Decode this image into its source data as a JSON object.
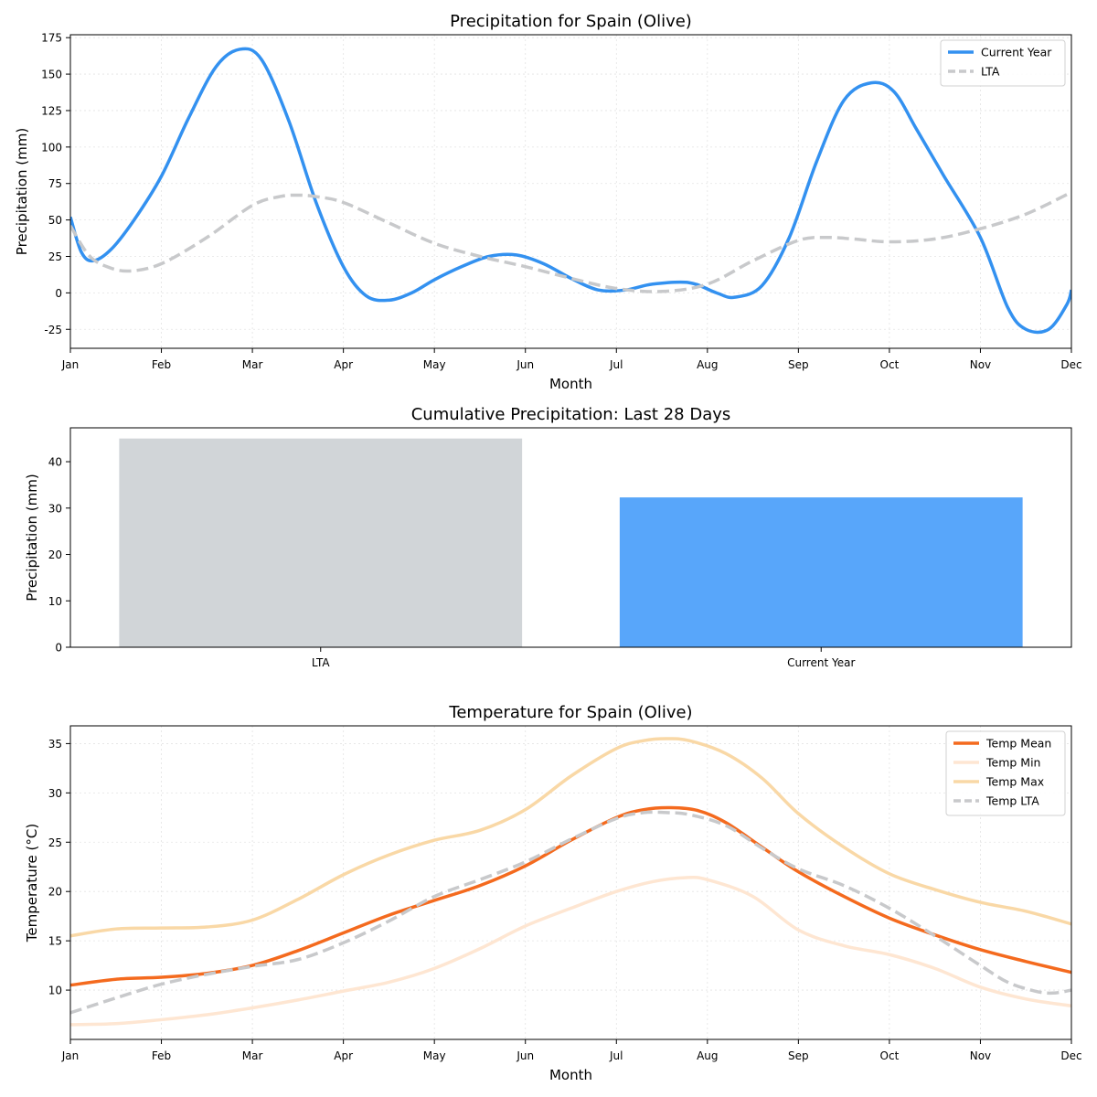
{
  "chart_data": [
    {
      "type": "line",
      "title": "Precipitation for Spain (Olive)",
      "xlabel": "Month",
      "ylabel": "Precipitation (mm)",
      "categories": [
        "Jan",
        "Feb",
        "Mar",
        "Apr",
        "May",
        "Jun",
        "Jul",
        "Aug",
        "Sep",
        "Oct",
        "Nov",
        "Dec"
      ],
      "xlim": [
        0,
        11
      ],
      "ylim": [
        -38,
        177
      ],
      "yticks": [
        -25,
        0,
        25,
        50,
        75,
        100,
        125,
        150,
        175
      ],
      "grid": true,
      "legend": "upper right",
      "series": [
        {
          "name": "Current Year",
          "color": "#3391f0",
          "style": "solid",
          "x": [
            0,
            0.12,
            0.25,
            0.45,
            0.7,
            1.0,
            1.3,
            1.6,
            1.86,
            2.1,
            2.4,
            2.7,
            3.0,
            3.25,
            3.5,
            3.75,
            4.0,
            4.3,
            4.6,
            4.9,
            5.2,
            5.5,
            5.8,
            6.1,
            6.4,
            6.8,
            7.1,
            7.3,
            7.6,
            7.9,
            8.2,
            8.5,
            8.8,
            9.05,
            9.3,
            9.6,
            10.0,
            10.3,
            10.5,
            10.75,
            10.95,
            11.0
          ],
          "y": [
            52,
            28,
            22,
            30,
            50,
            80,
            120,
            155,
            167,
            160,
            118,
            62,
            18,
            -2,
            -5,
            0,
            9,
            18,
            25,
            26,
            20,
            10,
            2,
            2,
            6,
            7,
            0,
            -3,
            5,
            38,
            90,
            132,
            144,
            138,
            112,
            80,
            38,
            -10,
            -25,
            -25,
            -8,
            2
          ]
        },
        {
          "name": "LTA",
          "color": "#c8c9cb",
          "style": "dashed",
          "x": [
            0,
            0.2,
            0.4,
            0.65,
            1.0,
            1.5,
            2.0,
            2.3,
            2.5,
            2.7,
            3.0,
            3.5,
            4.0,
            4.5,
            5.0,
            5.5,
            6.0,
            6.5,
            7.0,
            7.5,
            8.0,
            8.3,
            8.6,
            9.0,
            9.5,
            10.0,
            10.5,
            11.0
          ],
          "y": [
            46,
            26,
            18,
            15,
            20,
            38,
            60,
            66,
            67,
            66,
            62,
            48,
            34,
            25,
            18,
            10,
            3,
            1,
            6,
            22,
            36,
            38,
            37,
            35,
            37,
            44,
            54,
            69
          ]
        }
      ]
    },
    {
      "type": "bar",
      "title": "Cumulative Precipitation: Last 28 Days",
      "xlabel": "",
      "ylabel": "Precipitation (mm)",
      "categories": [
        "LTA",
        "Current Year"
      ],
      "values": [
        45,
        32.3
      ],
      "colors": [
        "#d1d5d8",
        "#58a6fa"
      ],
      "ylim": [
        0,
        47.3
      ],
      "yticks": [
        0,
        10,
        20,
        30,
        40
      ],
      "grid": false
    },
    {
      "type": "line",
      "title": "Temperature for Spain (Olive)",
      "xlabel": "Month",
      "ylabel": "Temperature (°C)",
      "categories": [
        "Jan",
        "Feb",
        "Mar",
        "Apr",
        "May",
        "Jun",
        "Jul",
        "Aug",
        "Sep",
        "Oct",
        "Nov",
        "Dec"
      ],
      "xlim": [
        0,
        11
      ],
      "ylim": [
        5,
        36.8
      ],
      "yticks": [
        10,
        15,
        20,
        25,
        30,
        35
      ],
      "grid": true,
      "legend": "upper right",
      "series": [
        {
          "name": "Temp Mean",
          "color": "#f46a1e",
          "style": "solid",
          "x": [
            0,
            0.5,
            1.0,
            1.5,
            2.0,
            2.5,
            3.0,
            3.5,
            4.0,
            4.5,
            5.0,
            5.5,
            6.0,
            6.3,
            6.6,
            6.9,
            7.2,
            7.6,
            8.0,
            8.5,
            9.0,
            9.5,
            10.0,
            10.5,
            11.0
          ],
          "y": [
            10.5,
            11.1,
            11.3,
            11.7,
            12.5,
            14.0,
            15.8,
            17.6,
            19.1,
            20.6,
            22.6,
            25.2,
            27.5,
            28.3,
            28.5,
            28.2,
            27.0,
            24.5,
            22.0,
            19.5,
            17.3,
            15.6,
            14.1,
            12.9,
            11.8
          ]
        },
        {
          "name": "Temp Min",
          "color": "#fee6d2",
          "style": "solid",
          "x": [
            0,
            0.5,
            1.0,
            1.5,
            2.0,
            2.5,
            3.0,
            3.5,
            4.0,
            4.5,
            5.0,
            5.5,
            6.0,
            6.4,
            6.75,
            7.0,
            7.5,
            8.0,
            8.5,
            9.0,
            9.5,
            10.0,
            10.5,
            11.0
          ],
          "y": [
            6.5,
            6.6,
            7.0,
            7.5,
            8.2,
            9.0,
            9.9,
            10.8,
            12.2,
            14.2,
            16.5,
            18.3,
            20.0,
            21.0,
            21.4,
            21.2,
            19.5,
            16.1,
            14.5,
            13.6,
            12.2,
            10.3,
            9.1,
            8.4
          ]
        },
        {
          "name": "Temp Max",
          "color": "#f9d8a6",
          "style": "solid",
          "x": [
            0,
            0.5,
            1.0,
            1.5,
            2.0,
            2.5,
            3.0,
            3.5,
            4.0,
            4.5,
            5.0,
            5.5,
            6.0,
            6.3,
            6.55,
            6.8,
            7.2,
            7.6,
            8.0,
            8.5,
            9.0,
            9.5,
            10.0,
            10.5,
            11.0
          ],
          "y": [
            15.5,
            16.2,
            16.3,
            16.4,
            17.1,
            19.2,
            21.7,
            23.7,
            25.2,
            26.2,
            28.3,
            31.7,
            34.5,
            35.3,
            35.5,
            35.3,
            34.0,
            31.5,
            27.9,
            24.5,
            21.8,
            20.2,
            18.9,
            18.0,
            16.7
          ]
        },
        {
          "name": "Temp LTA",
          "color": "#c8c9cb",
          "style": "dashed",
          "x": [
            0,
            0.5,
            1.0,
            1.5,
            2.0,
            2.5,
            3.0,
            3.5,
            4.0,
            4.5,
            5.0,
            5.5,
            6.0,
            6.3,
            6.55,
            6.8,
            7.2,
            7.6,
            8.0,
            8.5,
            9.0,
            9.5,
            10.0,
            10.3,
            10.6,
            10.8,
            11.0
          ],
          "y": [
            7.7,
            9.2,
            10.6,
            11.6,
            12.4,
            13.1,
            14.8,
            17.0,
            19.5,
            21.2,
            23.0,
            25.3,
            27.4,
            28.0,
            28.0,
            27.8,
            26.7,
            24.4,
            22.3,
            20.6,
            18.3,
            15.5,
            12.5,
            10.8,
            9.9,
            9.7,
            10.0
          ]
        }
      ]
    }
  ]
}
